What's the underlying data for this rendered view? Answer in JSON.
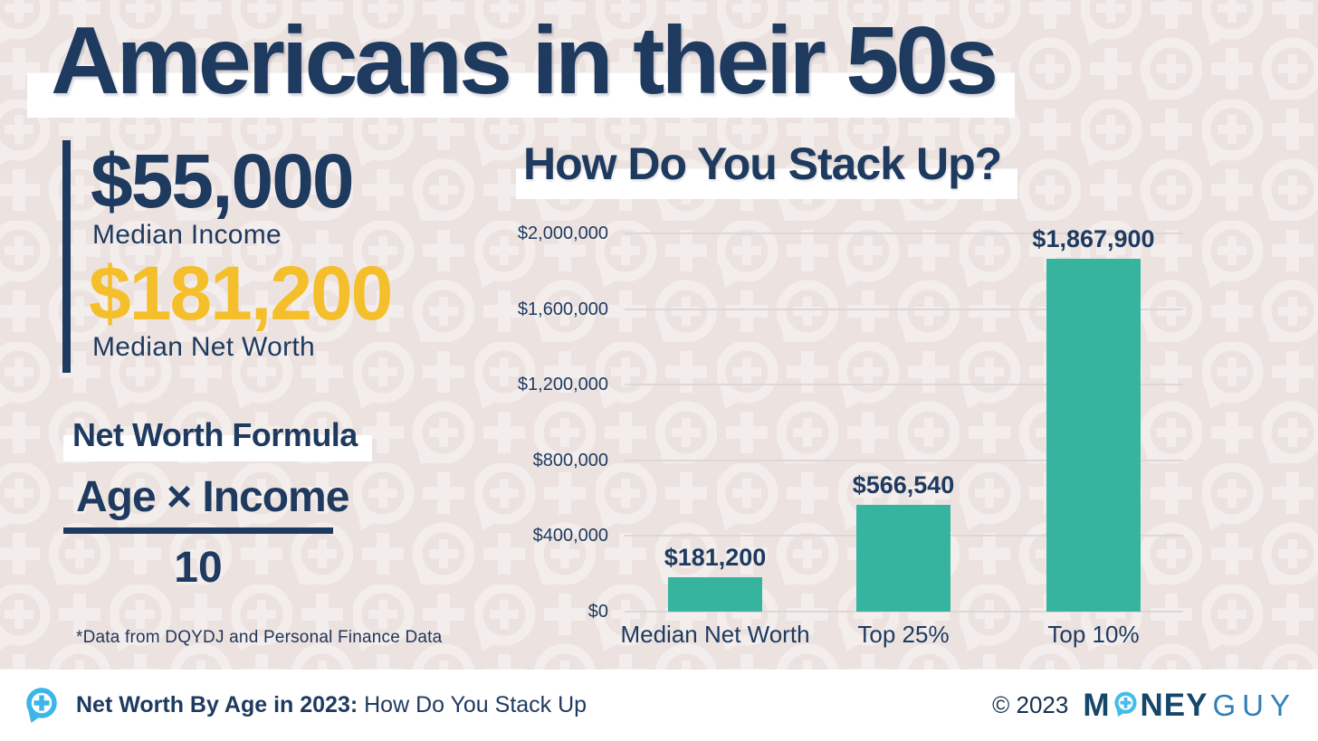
{
  "header": {
    "title": "Americans in their 50s"
  },
  "stats": {
    "income_value": "$55,000",
    "income_label": "Median Income",
    "networth_value": "$181,200",
    "networth_label": "Median Net Worth"
  },
  "formula": {
    "title": "Net Worth Formula",
    "numerator": "Age × Income",
    "denominator": "10"
  },
  "footnote": "*Data from DQYDJ and Personal Finance Data",
  "chart_data": {
    "type": "bar",
    "title": "How Do You Stack Up?",
    "categories": [
      "Median Net Worth",
      "Top 25%",
      "Top 10%"
    ],
    "values": [
      181200,
      566540,
      1867900
    ],
    "value_labels": [
      "$181,200",
      "$566,540",
      "$1,867,900"
    ],
    "xlabel": "",
    "ylabel": "",
    "ylim": [
      0,
      2000000
    ],
    "y_ticks": [
      0,
      400000,
      800000,
      1200000,
      1600000,
      2000000
    ],
    "y_tick_labels": [
      "$0",
      "$400,000",
      "$800,000",
      "$1,200,000",
      "$1,600,000",
      "$2,000,000"
    ],
    "grid": true,
    "legend": false,
    "bar_color": "#36b4a0"
  },
  "footer": {
    "title_bold": "Net Worth By Age in 2023:",
    "title_regular": " How Do You Stack Up",
    "copyright": "© 2023",
    "logo_m": "M",
    "logo_ney": "NEY",
    "logo_guy": "GUY"
  },
  "icons": {
    "footer_icon": "speech-bubble-plus-icon",
    "logo_o_icon": "speech-bubble-plus-icon",
    "background_motif": "speech-bubble-plus-pattern"
  },
  "colors": {
    "navy": "#1e3a5f",
    "gold": "#f4bf2b",
    "teal": "#36b4a0",
    "light_blue": "#3cb5e8",
    "logo_navy": "#15476b",
    "logo_blue": "#2f80b8",
    "background": "#ece3e1",
    "pattern": "#f3edec",
    "gridline": "#ddd8d6",
    "highlight": "#ffffff"
  }
}
